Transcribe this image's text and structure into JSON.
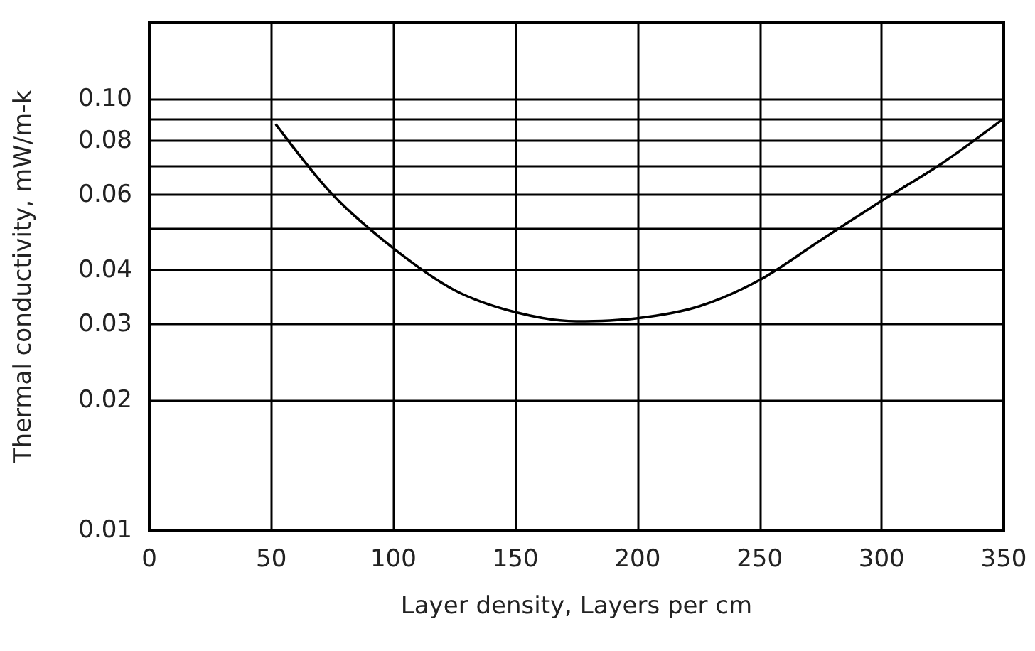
{
  "chart_data": {
    "type": "line",
    "xlabel": "Layer density, Layers per cm",
    "ylabel": "Thermal conductivity, mW/m-k",
    "x": [
      52,
      75,
      100,
      125,
      150,
      175,
      200,
      225,
      250,
      275,
      300,
      325,
      350
    ],
    "series": [
      {
        "color": "#000000",
        "values": [
          0.087,
          0.06,
          0.045,
          0.036,
          0.032,
          0.0305,
          0.031,
          0.033,
          0.038,
          0.047,
          0.058,
          0.071,
          0.09
        ]
      }
    ],
    "log": "y",
    "xlim": [
      0,
      350
    ],
    "ylim": [
      0.01,
      0.15
    ],
    "xticks": [
      0,
      50,
      100,
      150,
      200,
      250,
      300,
      350
    ],
    "yticks": [
      0.01,
      0.02,
      0.03,
      0.04,
      {
        "value": 0.05,
        "label": null
      },
      0.06,
      {
        "value": 0.07,
        "label": null
      },
      0.08,
      {
        "value": 0.09,
        "label": null
      },
      {
        "value": 0.1,
        "label": "0.10"
      }
    ],
    "grid": true,
    "marker": "none",
    "line_style": "solid"
  }
}
